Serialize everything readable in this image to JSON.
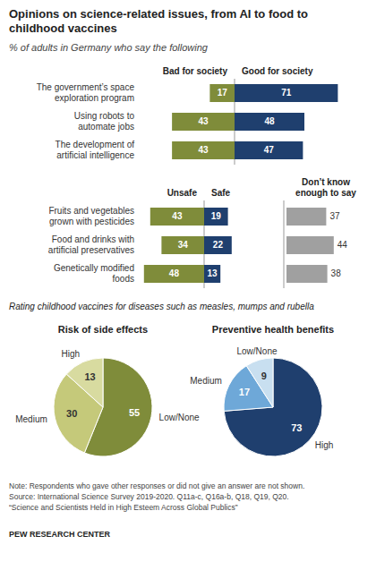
{
  "chart_data": [
    {
      "type": "bar",
      "orientation": "horizontal",
      "title": "Opinions on science-related issues, from AI to food to\nchildhood vaccines",
      "subtitle": "% of adults in Germany who say the following",
      "categories": [
        "The government’s space\nexploration program",
        "Using robots to\nautomate jobs",
        "The development of\nartificial intelligence"
      ],
      "series": [
        {
          "name": "Bad for society",
          "color": "#7f8c3a",
          "values": [
            17,
            43,
            43
          ]
        },
        {
          "name": "Good for society",
          "color": "#1f3f6e",
          "values": [
            71,
            48,
            47
          ]
        }
      ],
      "xlim": [
        0,
        80
      ],
      "data_labels": true,
      "tick_labels": "y"
    },
    {
      "type": "bar",
      "orientation": "horizontal",
      "categories": [
        "Fruits and vegetables\ngrown with pesticides",
        "Food and drinks with\nartificial preservatives",
        "Genetically modified\nfoods"
      ],
      "series": [
        {
          "name": "Unsafe",
          "color": "#7f8c3a",
          "values": [
            43,
            34,
            48
          ]
        },
        {
          "name": "Safe",
          "color": "#1f3f6e",
          "values": [
            19,
            22,
            13
          ]
        },
        {
          "name": "Don’t know\nenough to say",
          "color": "#a0a0a0",
          "values": [
            37,
            44,
            38
          ]
        }
      ],
      "xlim": [
        0,
        50
      ],
      "data_labels": true,
      "tick_labels": "y"
    },
    {
      "type": "pie",
      "title": "Risk of side effects",
      "categories": [
        "Low/None",
        "Medium",
        "High"
      ],
      "values": [
        55,
        30,
        13
      ],
      "colors": [
        "#7f8c3a",
        "#c5c97a",
        "#d8dba0"
      ],
      "data_labels": true,
      "annotations": [
        "Rating childhood vaccines for diseases such as measles, mumps and rubella"
      ]
    },
    {
      "type": "pie",
      "title": "Preventive health benefits",
      "categories": [
        "High",
        "Medium",
        "Low/None"
      ],
      "values": [
        73,
        17,
        9
      ],
      "colors": [
        "#1f3f6e",
        "#6ea8d8",
        "#c8dff0"
      ],
      "data_labels": true,
      "annotations": [
        "Note: Respondents who gave other responses or did not give an answer are not shown.\nSource: International Science Survey 2019-2020. Q11a-c, Q16a-b, Q18, Q19, Q20.\n“Science and Scientists Held in High Esteem Across Global Publics”",
        "PEW RESEARCH CENTER"
      ]
    }
  ]
}
